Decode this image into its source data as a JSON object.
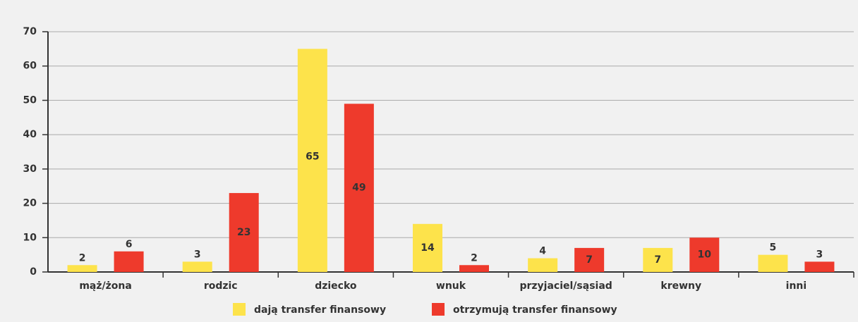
{
  "chart_data": {
    "type": "bar",
    "categories": [
      "mąż/żona",
      "rodzic",
      "dziecko",
      "wnuk",
      "przyjaciel/sąsiad",
      "krewny",
      "inni"
    ],
    "series": [
      {
        "name": "dają transfer finansowy",
        "color": "#fde34b",
        "values": [
          2,
          3,
          65,
          14,
          4,
          7,
          5
        ]
      },
      {
        "name": "otrzymują transfer finansowy",
        "color": "#ee3a2c",
        "values": [
          6,
          23,
          49,
          2,
          7,
          10,
          3
        ]
      }
    ],
    "ylim": [
      0,
      70
    ],
    "yticks": [
      0,
      10,
      20,
      30,
      40,
      50,
      60,
      70
    ],
    "grid": true,
    "legend": "bottom"
  }
}
